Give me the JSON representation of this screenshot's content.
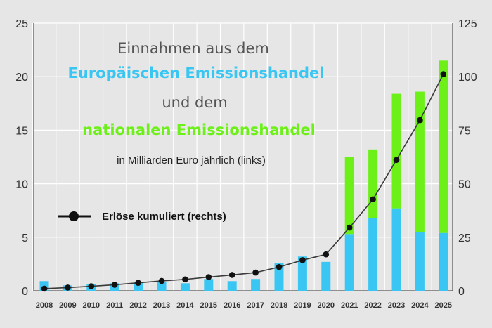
{
  "chart_data": {
    "type": "bar",
    "title_lines": [
      "Einnahmen aus dem",
      "Europäischen Emissionshandel",
      "und dem",
      "nationalen Emissionshandel"
    ],
    "subtitle": "in Milliarden Euro jährlich (links)",
    "categories": [
      "2008",
      "2009",
      "2010",
      "2011",
      "2012",
      "2013",
      "2014",
      "2015",
      "2016",
      "2017",
      "2018",
      "2019",
      "2020",
      "2021",
      "2022",
      "2023",
      "2024",
      "2025"
    ],
    "series": [
      {
        "name": "Europäischen Emissionshandel",
        "axis": "left",
        "stack": "annual",
        "values": [
          0.9,
          0.5,
          0.6,
          0.7,
          0.8,
          0.8,
          0.7,
          1.1,
          0.9,
          1.1,
          2.6,
          3.2,
          2.7,
          5.3,
          6.8,
          7.7,
          5.5,
          5.4
        ]
      },
      {
        "name": "nationalen Emissionshandel",
        "axis": "left",
        "stack": "annual",
        "values": [
          0,
          0,
          0,
          0,
          0,
          0,
          0,
          0,
          0,
          0,
          0,
          0,
          0,
          7.2,
          6.4,
          10.7,
          13.1,
          16.1
        ]
      },
      {
        "name": "Erlöse kumuliert (rechts)",
        "axis": "right",
        "type": "line",
        "values": [
          1,
          1.5,
          2.1,
          2.8,
          3.7,
          4.6,
          5.3,
          6.4,
          7.4,
          8.5,
          11.1,
          14.3,
          17,
          29.5,
          42.7,
          61.1,
          79.7,
          101.2
        ]
      }
    ],
    "ylim_left": [
      0,
      25
    ],
    "yticks_left": [
      0,
      5,
      10,
      15,
      20,
      25
    ],
    "ylim_right": [
      0,
      125
    ],
    "yticks_right": [
      0,
      25,
      50,
      75,
      100,
      125
    ],
    "grid": true,
    "legend": {
      "label": "Erlöse kumuliert (rechts)",
      "placement": "center-left"
    },
    "colors": {
      "eu": "#39c6f3",
      "national": "#6cf018",
      "line": "#3a3a3a",
      "marker": "#111111",
      "grid": "#ffffff",
      "background": "#e6e6e6"
    }
  }
}
